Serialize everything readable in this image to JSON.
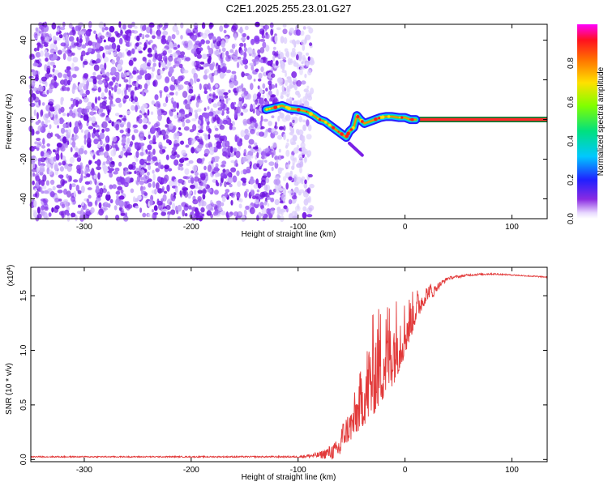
{
  "figure": {
    "title": "C2E1.2025.255.23.01.G27"
  },
  "chart_data": [
    {
      "type": "heatmap",
      "xlabel": "Height of straight line (km)",
      "ylabel": "Frequency (Hz)",
      "xlim": [
        -350,
        133
      ],
      "ylim": [
        -50,
        48
      ],
      "xticks": [
        -300,
        -200,
        -100,
        0,
        100
      ],
      "yticks": [
        -40,
        -20,
        0,
        20,
        40
      ],
      "noise_region_x": [
        -350,
        -95
      ],
      "signal_trace": {
        "x": [
          -130,
          -122,
          -115,
          -108,
          -100,
          -92,
          -85,
          -80,
          -75,
          -70,
          -65,
          -60,
          -55,
          -52,
          -48,
          -45,
          -42,
          -38,
          -33,
          -28,
          -23,
          -18,
          -12,
          -6,
          0,
          5,
          10
        ],
        "y": [
          5,
          6,
          7,
          5.5,
          5,
          4,
          2,
          0,
          -1,
          -3,
          -5,
          -7,
          -9,
          -6,
          -4,
          2,
          0,
          -2,
          -1,
          0,
          1,
          1.5,
          1.5,
          1,
          1,
          0,
          0
        ]
      },
      "echo_trace": {
        "x": [
          -52,
          -48,
          -44,
          -40
        ],
        "y": [
          -12,
          -14,
          -16,
          -18
        ]
      },
      "constant_band": {
        "x": [
          5,
          133
        ],
        "y": 0
      },
      "colorbar": {
        "label": "Normalized spectral amplitude",
        "range": [
          0,
          1
        ],
        "ticks": [
          0.0,
          0.2,
          0.4,
          0.6,
          0.8
        ]
      },
      "grid": false
    },
    {
      "type": "line",
      "xlabel": "Height of straight line (km)",
      "ylabel": "SNR (10 * v/v)",
      "scale_note": "(x10",
      "scale_exp": "4",
      "xlim": [
        -350,
        133
      ],
      "ylim": [
        -0.02,
        1.76
      ],
      "xticks": [
        -300,
        -200,
        -100,
        0,
        100
      ],
      "yticks": [
        0.0,
        0.5,
        1.0,
        1.5
      ],
      "line_color": "#e23a3a",
      "envelope": {
        "x": [
          -350,
          -100,
          -80,
          -65,
          -50,
          -40,
          -30,
          -20,
          -10,
          0,
          10,
          20,
          30,
          40,
          60,
          80,
          100,
          133
        ],
        "base": [
          0.025,
          0.025,
          0.04,
          0.08,
          0.18,
          0.3,
          0.4,
          0.55,
          0.7,
          0.95,
          1.25,
          1.45,
          1.58,
          1.66,
          1.69,
          1.7,
          1.69,
          1.67
        ],
        "peak": [
          0.03,
          0.04,
          0.1,
          0.25,
          0.55,
          0.95,
          1.45,
          1.6,
          1.62,
          1.55,
          1.6,
          1.62,
          1.65,
          1.69,
          1.71,
          1.72,
          1.7,
          1.68
        ]
      },
      "grid": false
    }
  ]
}
